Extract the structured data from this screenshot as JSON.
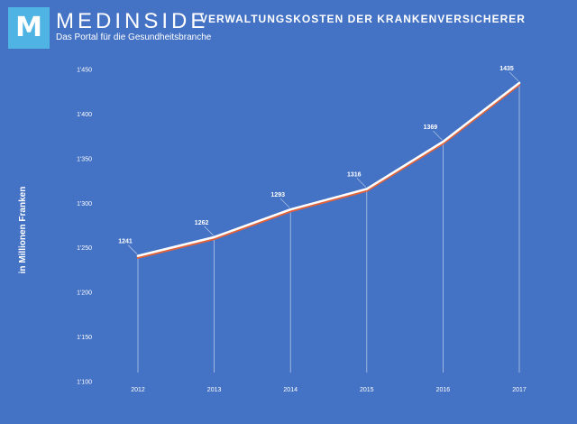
{
  "brand": {
    "logo_letter": "M",
    "name": "MEDINSIDE",
    "tagline": "Das Portal für die Gesundheitsbranche"
  },
  "colors": {
    "background": "#4472c4",
    "logo_box": "#4fb4e4",
    "line": "#ffffff",
    "line_shadow": "#e0623a",
    "drop_lines": "#c9d6ef"
  },
  "chart_data": {
    "type": "line",
    "title": "VERWALTUNGSKOSTEN DER KRANKENVERSICHERER",
    "xlabel": "",
    "ylabel": "in Millionen Franken",
    "categories": [
      "2012",
      "2013",
      "2014",
      "2015",
      "2016",
      "2017"
    ],
    "series": [
      {
        "name": "Verwaltungskosten",
        "values": [
          1241,
          1262,
          1293,
          1316,
          1369,
          1435
        ],
        "labels": [
          "1241",
          "1262",
          "1293",
          "1316",
          "1369",
          "1435"
        ]
      }
    ],
    "ylim": [
      1100,
      1450
    ],
    "yticks": [
      1100,
      1150,
      1200,
      1250,
      1300,
      1350,
      1400,
      1450
    ],
    "ytick_labels": [
      "1'100",
      "1'150",
      "1'200",
      "1'250",
      "1'300",
      "1'350",
      "1'400",
      "1'450"
    ],
    "grid": false
  }
}
